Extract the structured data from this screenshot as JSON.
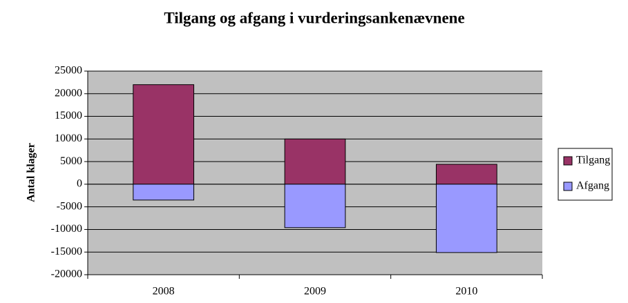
{
  "chart_data": {
    "type": "bar",
    "stacked": true,
    "title": "Tilgang og afgang i vurderingsankenævnene",
    "y_label": "Antal klager",
    "categories": [
      "2008",
      "2009",
      "2010"
    ],
    "series": [
      {
        "name": "Tilgang",
        "color": "#993366",
        "values": [
          22000,
          10000,
          4400
        ]
      },
      {
        "name": "Afgang",
        "color": "#9999ff",
        "values": [
          -3500,
          -9600,
          -15100
        ]
      }
    ],
    "ylim": [
      -20000,
      25000
    ],
    "yticks": [
      -20000,
      -15000,
      -10000,
      -5000,
      0,
      5000,
      10000,
      15000,
      20000,
      25000
    ],
    "grid": true,
    "legend": "right"
  }
}
